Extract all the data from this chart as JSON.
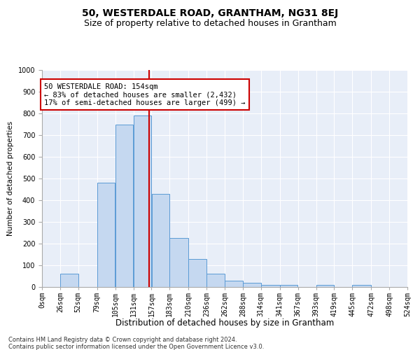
{
  "title": "50, WESTERDALE ROAD, GRANTHAM, NG31 8EJ",
  "subtitle": "Size of property relative to detached houses in Grantham",
  "xlabel": "Distribution of detached houses by size in Grantham",
  "ylabel": "Number of detached properties",
  "bins": [
    0,
    26,
    52,
    79,
    105,
    131,
    157,
    183,
    210,
    236,
    262,
    288,
    314,
    341,
    367,
    393,
    419,
    445,
    472,
    498,
    524
  ],
  "bar_labels": [
    "0sqm",
    "26sqm",
    "52sqm",
    "79sqm",
    "105sqm",
    "131sqm",
    "157sqm",
    "183sqm",
    "210sqm",
    "236sqm",
    "262sqm",
    "288sqm",
    "314sqm",
    "341sqm",
    "367sqm",
    "393sqm",
    "419sqm",
    "445sqm",
    "472sqm",
    "498sqm",
    "524sqm"
  ],
  "bar_heights": [
    0,
    60,
    0,
    480,
    750,
    790,
    430,
    225,
    130,
    60,
    30,
    20,
    10,
    10,
    0,
    10,
    0,
    10,
    0,
    0,
    0
  ],
  "bar_color": "#c5d8f0",
  "bar_edge_color": "#5b9bd5",
  "vline_x": 154,
  "vline_color": "#cc0000",
  "annotation_text": "50 WESTERDALE ROAD: 154sqm\n← 83% of detached houses are smaller (2,432)\n17% of semi-detached houses are larger (499) →",
  "annotation_box_color": "#ffffff",
  "annotation_box_edge": "#cc0000",
  "ylim": [
    0,
    1000
  ],
  "yticks": [
    0,
    100,
    200,
    300,
    400,
    500,
    600,
    700,
    800,
    900,
    1000
  ],
  "background_color": "#e8eef8",
  "footer1": "Contains HM Land Registry data © Crown copyright and database right 2024.",
  "footer2": "Contains public sector information licensed under the Open Government Licence v3.0.",
  "title_fontsize": 10,
  "subtitle_fontsize": 9,
  "xlabel_fontsize": 8.5,
  "ylabel_fontsize": 7.5,
  "tick_fontsize": 7,
  "annotation_fontsize": 7.5,
  "footer_fontsize": 6
}
